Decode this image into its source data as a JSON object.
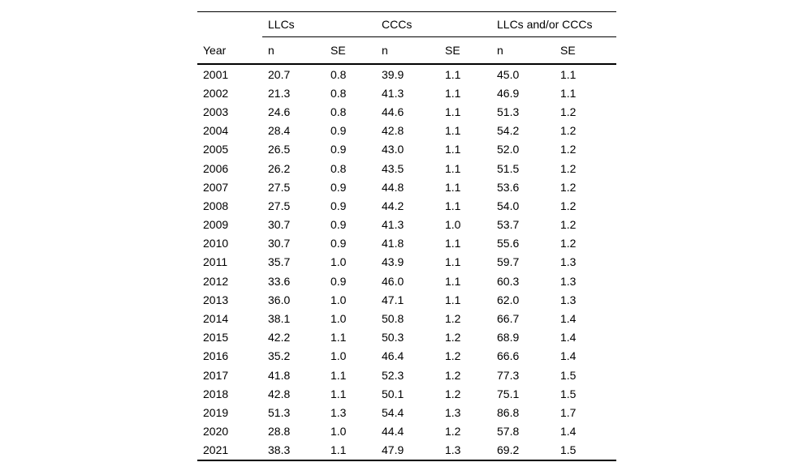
{
  "chart_data": {
    "type": "table",
    "column_groups": [
      "",
      "LLCs",
      "CCCs",
      "LLCs and/or CCCs"
    ],
    "columns": [
      "Year",
      "n",
      "SE",
      "n",
      "SE",
      "n",
      "SE"
    ],
    "rows": [
      [
        "2001",
        "20.7",
        "0.8",
        "39.9",
        "1.1",
        "45.0",
        "1.1"
      ],
      [
        "2002",
        "21.3",
        "0.8",
        "41.3",
        "1.1",
        "46.9",
        "1.1"
      ],
      [
        "2003",
        "24.6",
        "0.8",
        "44.6",
        "1.1",
        "51.3",
        "1.2"
      ],
      [
        "2004",
        "28.4",
        "0.9",
        "42.8",
        "1.1",
        "54.2",
        "1.2"
      ],
      [
        "2005",
        "26.5",
        "0.9",
        "43.0",
        "1.1",
        "52.0",
        "1.2"
      ],
      [
        "2006",
        "26.2",
        "0.8",
        "43.5",
        "1.1",
        "51.5",
        "1.2"
      ],
      [
        "2007",
        "27.5",
        "0.9",
        "44.8",
        "1.1",
        "53.6",
        "1.2"
      ],
      [
        "2008",
        "27.5",
        "0.9",
        "44.2",
        "1.1",
        "54.0",
        "1.2"
      ],
      [
        "2009",
        "30.7",
        "0.9",
        "41.3",
        "1.0",
        "53.7",
        "1.2"
      ],
      [
        "2010",
        "30.7",
        "0.9",
        "41.8",
        "1.1",
        "55.6",
        "1.2"
      ],
      [
        "2011",
        "35.7",
        "1.0",
        "43.9",
        "1.1",
        "59.7",
        "1.3"
      ],
      [
        "2012",
        "33.6",
        "0.9",
        "46.0",
        "1.1",
        "60.3",
        "1.3"
      ],
      [
        "2013",
        "36.0",
        "1.0",
        "47.1",
        "1.1",
        "62.0",
        "1.3"
      ],
      [
        "2014",
        "38.1",
        "1.0",
        "50.8",
        "1.2",
        "66.7",
        "1.4"
      ],
      [
        "2015",
        "42.2",
        "1.1",
        "50.3",
        "1.2",
        "68.9",
        "1.4"
      ],
      [
        "2016",
        "35.2",
        "1.0",
        "46.4",
        "1.2",
        "66.6",
        "1.4"
      ],
      [
        "2017",
        "41.8",
        "1.1",
        "52.3",
        "1.2",
        "77.3",
        "1.5"
      ],
      [
        "2018",
        "42.8",
        "1.1",
        "50.1",
        "1.2",
        "75.1",
        "1.5"
      ],
      [
        "2019",
        "51.3",
        "1.3",
        "54.4",
        "1.3",
        "86.8",
        "1.7"
      ],
      [
        "2020",
        "28.8",
        "1.0",
        "44.4",
        "1.2",
        "57.8",
        "1.4"
      ],
      [
        "2021",
        "38.3",
        "1.1",
        "47.9",
        "1.3",
        "69.2",
        "1.5"
      ]
    ],
    "layout": {
      "header_rows": 2,
      "grid": "horizontal-rules-only",
      "rule_color": "#000000",
      "background": "#ffffff"
    }
  }
}
